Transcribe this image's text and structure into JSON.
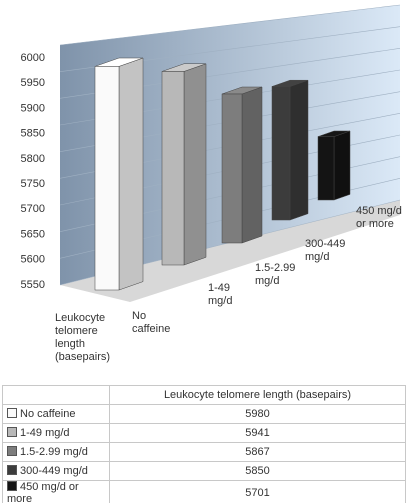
{
  "chart_data": {
    "type": "bar3d",
    "categories": [
      "Leukocyte telomere length (basepairs)"
    ],
    "series": [
      {
        "name": "No caffeine",
        "color": "#fafafa",
        "values": [
          5980
        ]
      },
      {
        "name": "1-49 mg/d",
        "color": "#b8b8b8",
        "values": [
          5941
        ]
      },
      {
        "name": "1.5-2.99 mg/d",
        "color": "#7d7d7d",
        "values": [
          5867
        ]
      },
      {
        "name": "300-449 mg/d",
        "color": "#3c3c3c",
        "values": [
          5850
        ]
      },
      {
        "name": "450 mg/d or more",
        "color": "#141414",
        "values": [
          5701
        ]
      }
    ],
    "ylim": [
      5550,
      6000
    ],
    "yticks": [
      5550,
      5600,
      5650,
      5700,
      5750,
      5800,
      5850,
      5900,
      5950,
      6000
    ],
    "grid": true,
    "data_table": true
  }
}
